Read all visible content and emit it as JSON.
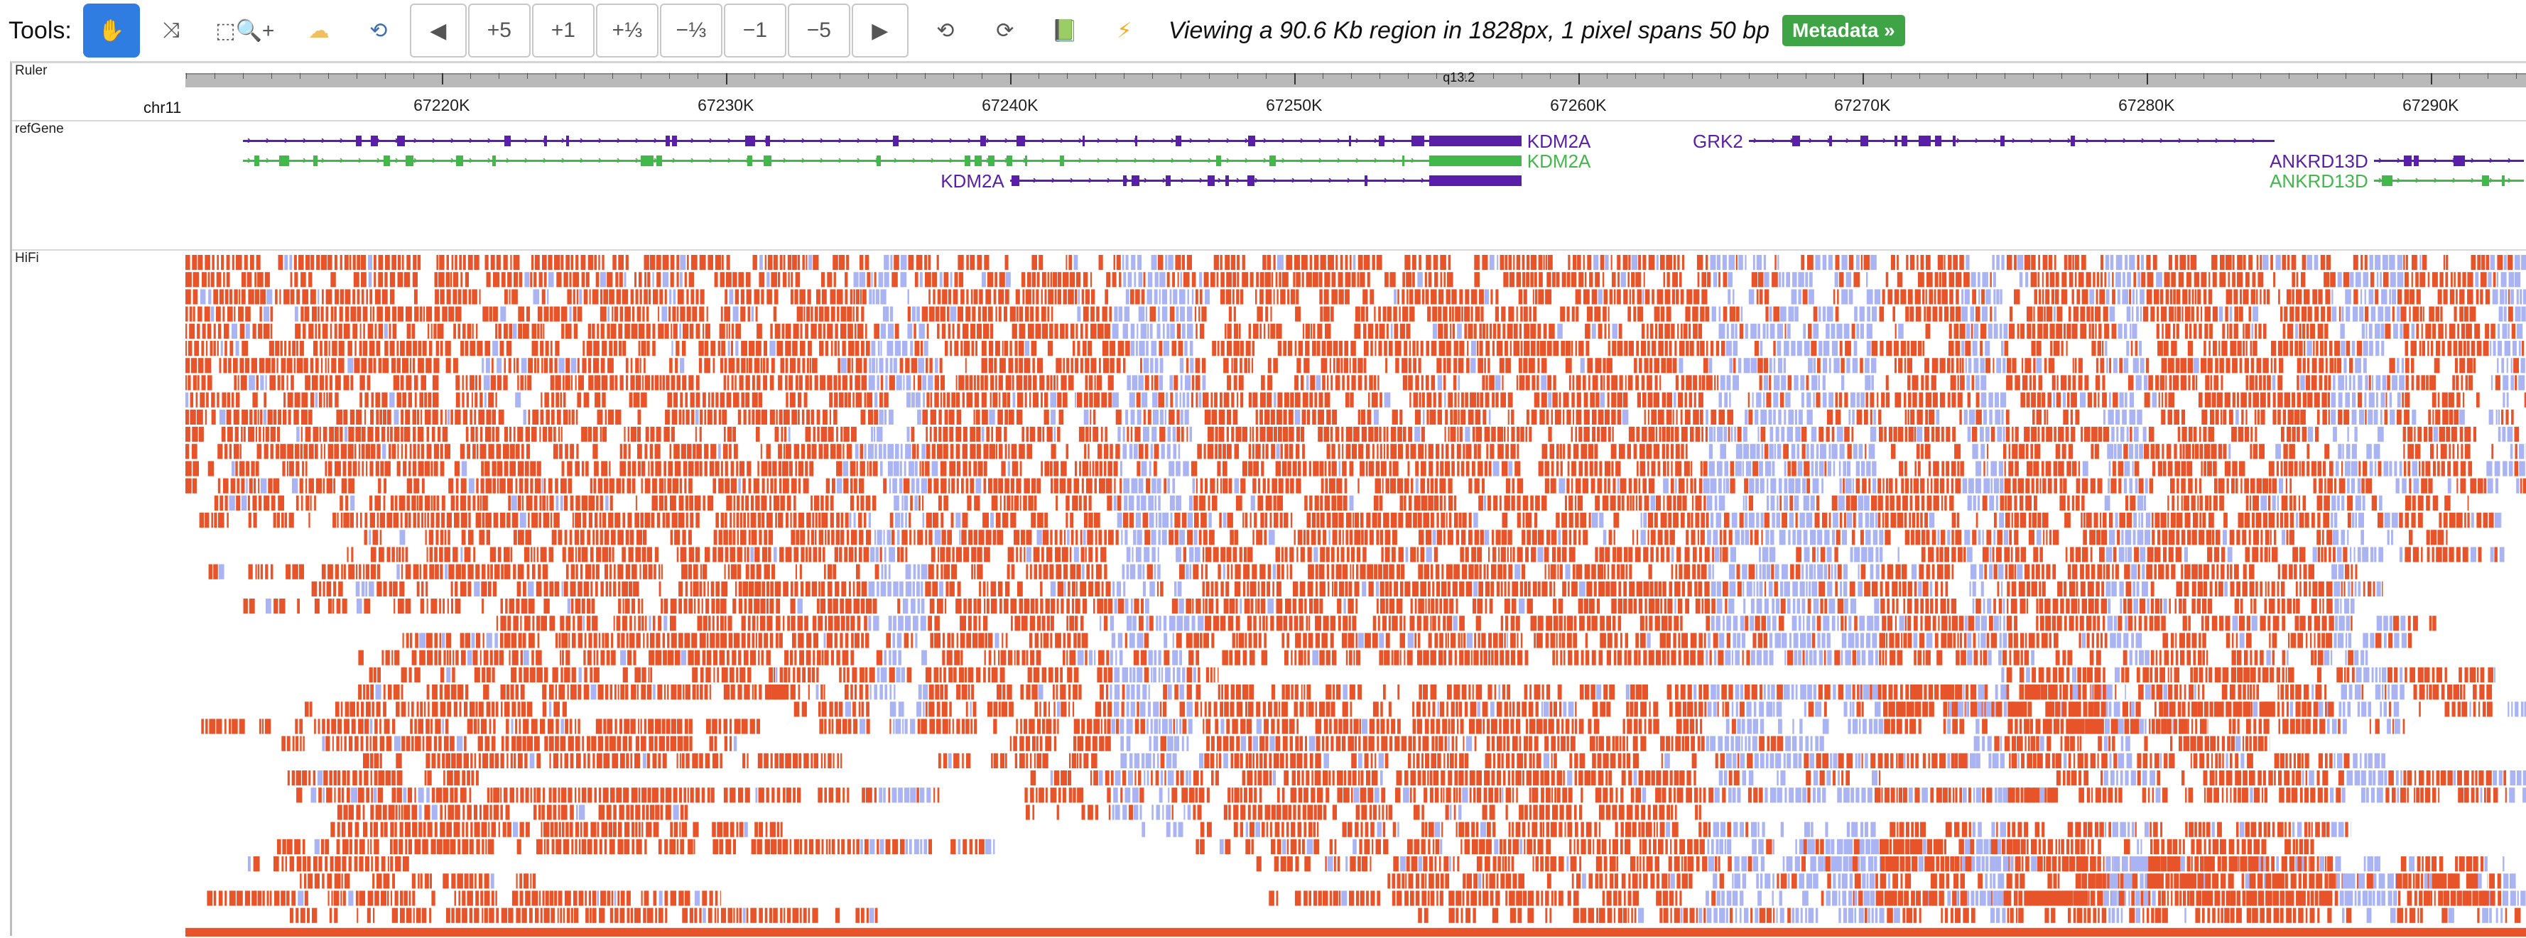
{
  "toolbar": {
    "tools_label": "Tools:",
    "buttons": {
      "pan": "✋",
      "shuffle": "⤨",
      "zoom_region": "⬚🔍+",
      "cloud": "☁",
      "rearrange": "⟲",
      "prev": "◀",
      "plus5": "+5",
      "plus1": "+1",
      "plus_third": "+⅓",
      "minus_third": "−⅓",
      "minus1": "−1",
      "minus5": "−5",
      "next": "▶",
      "undo": "⟲",
      "redo": "⟳",
      "book": "📗",
      "bolt": "⚡"
    },
    "viewing_text": "Viewing a 90.6 Kb region in 1828px, 1 pixel spans 50 bp",
    "metadata_label": "Metadata »"
  },
  "tracks": {
    "ruler": "Ruler",
    "refgene": "refGene",
    "hifi": "HiFi"
  },
  "ruler": {
    "chromosome": "chr11",
    "band": "q13.2",
    "ticks": [
      {
        "label": "67220K",
        "pos": 67220000
      },
      {
        "label": "67230K",
        "pos": 67230000
      },
      {
        "label": "67240K",
        "pos": 67240000
      },
      {
        "label": "67250K",
        "pos": 67250000
      },
      {
        "label": "67260K",
        "pos": 67260000
      },
      {
        "label": "67270K",
        "pos": 67270000
      },
      {
        "label": "67280K",
        "pos": 67280000
      },
      {
        "label": "67290K",
        "pos": 67290000
      }
    ]
  },
  "genes": [
    {
      "name": "KDM2A",
      "color": "#5a1fa8",
      "start": 67213000,
      "end": 67258000,
      "label_side": "right",
      "row": 0
    },
    {
      "name": "KDM2A",
      "color": "#42b84b",
      "start": 67213000,
      "end": 67258000,
      "label_side": "right",
      "row": 1
    },
    {
      "name": "KDM2A",
      "color": "#5a1fa8",
      "start": 67240000,
      "end": 67258000,
      "label_side": "left",
      "row": 2
    },
    {
      "name": "GRK2",
      "color": "#5a1fa8",
      "start": 67266000,
      "end": 67284500,
      "label_side": "left",
      "row": 0
    },
    {
      "name": "ANKRD13D",
      "color": "#5a1fa8",
      "start": 67288000,
      "end": 67294000,
      "label_side": "left",
      "row": 1
    },
    {
      "name": "ANKRD13D",
      "color": "#42b84b",
      "start": 67288000,
      "end": 67294000,
      "label_side": "left",
      "row": 2
    }
  ],
  "colors": {
    "methylated": "#e8542a",
    "unmethylated": "#aab4f2",
    "gene_purple": "#5a1fa8",
    "gene_green": "#42b84b",
    "active_tool": "#2f7de1",
    "metadata_bg": "#3fa446"
  }
}
